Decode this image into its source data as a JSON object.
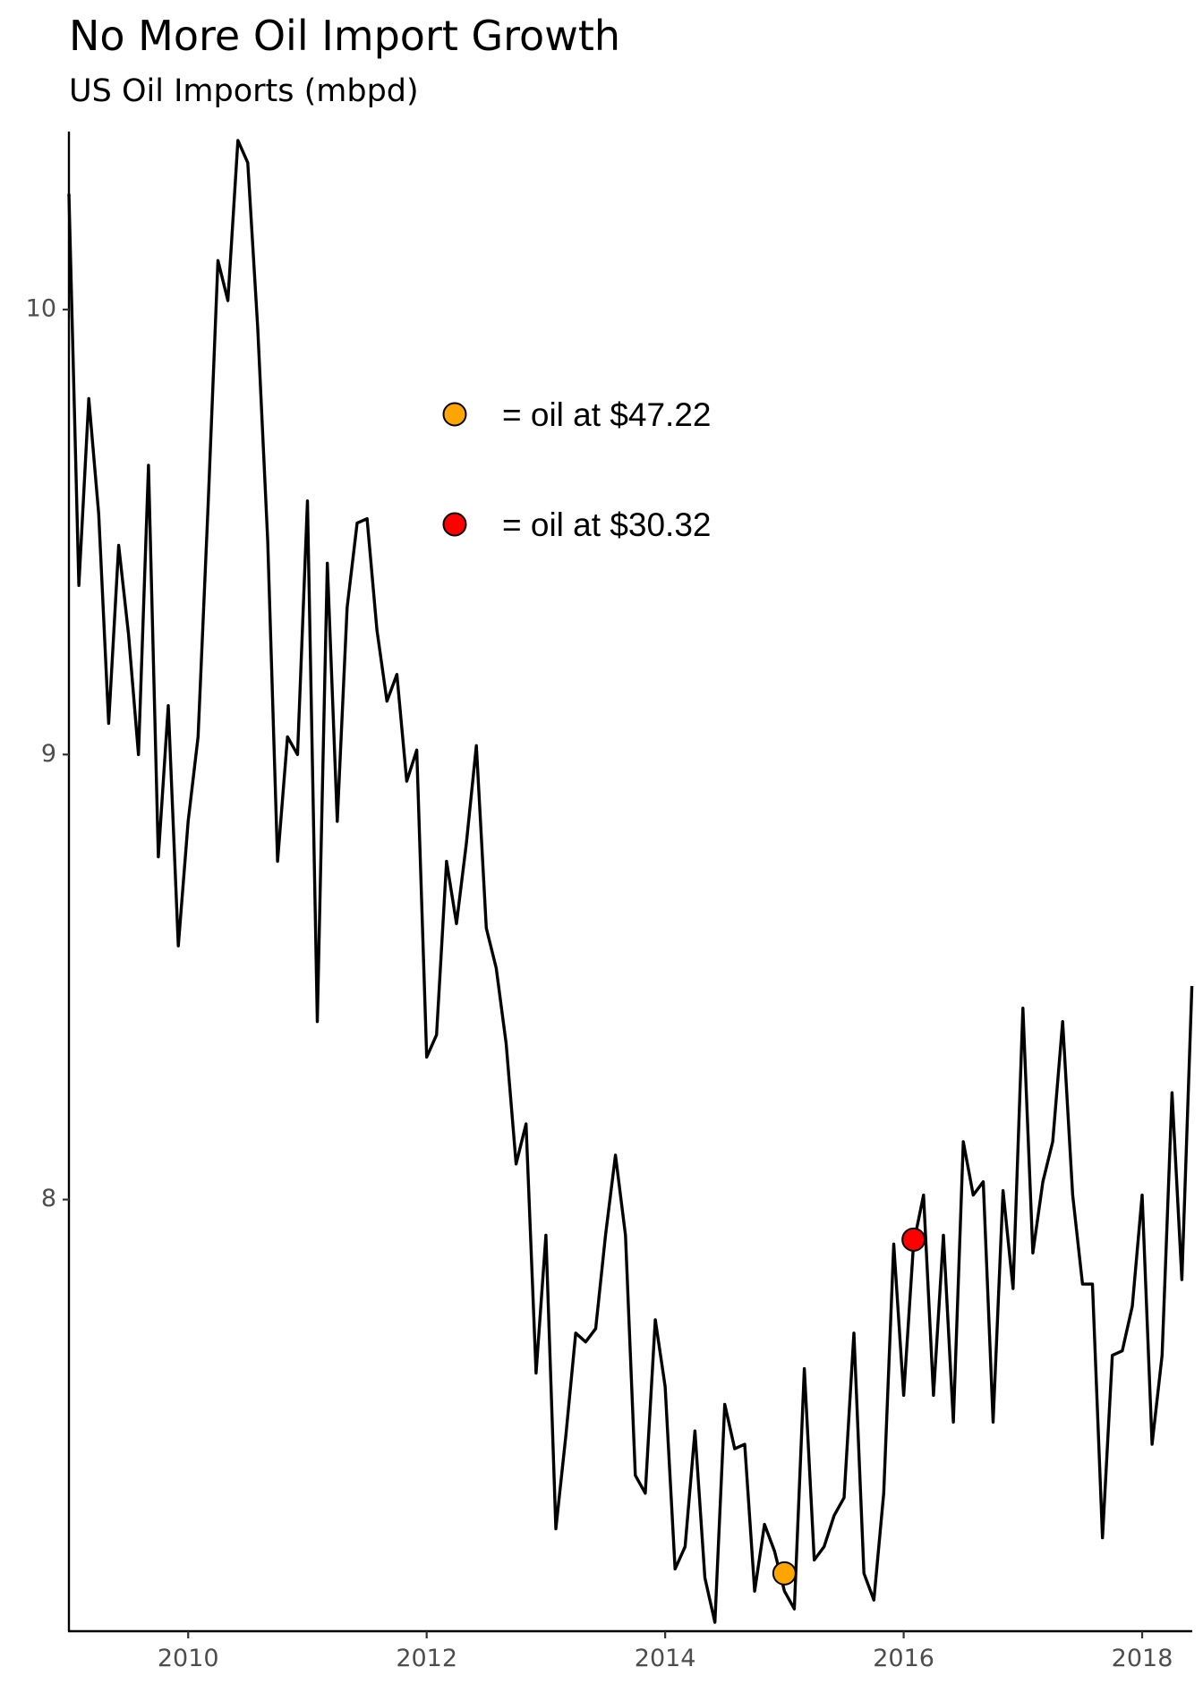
{
  "chart_data": {
    "type": "line",
    "title": "No More Oil Import Growth",
    "subtitle": "US Oil Imports (mbpd)",
    "xlabel": "",
    "ylabel": "",
    "x_ticks": [
      "2010",
      "2012",
      "2014",
      "2016",
      "2018"
    ],
    "y_ticks": [
      "8",
      "9",
      "10"
    ],
    "xlim": [
      2009.0,
      2018.42
    ],
    "ylim": [
      7.03,
      10.4
    ],
    "grid": false,
    "line_color": "#000000",
    "series": [
      {
        "x": [
          2009.0,
          2009.083,
          2009.167,
          2009.25,
          2009.333,
          2009.417,
          2009.5,
          2009.583,
          2009.667,
          2009.75,
          2009.833,
          2009.917,
          2010.0,
          2010.083,
          2010.167,
          2010.25,
          2010.333,
          2010.417,
          2010.5,
          2010.583,
          2010.667,
          2010.75,
          2010.833,
          2010.917,
          2011.0,
          2011.083,
          2011.167,
          2011.25,
          2011.333,
          2011.417,
          2011.5,
          2011.583,
          2011.667,
          2011.75,
          2011.833,
          2011.917,
          2012.0,
          2012.083,
          2012.167,
          2012.25,
          2012.333,
          2012.417,
          2012.5,
          2012.583,
          2012.667,
          2012.75,
          2012.833,
          2012.917,
          2013.0,
          2013.083,
          2013.167,
          2013.25,
          2013.333,
          2013.417,
          2013.5,
          2013.583,
          2013.667,
          2013.75,
          2013.833,
          2013.917,
          2014.0,
          2014.083,
          2014.167,
          2014.25,
          2014.333,
          2014.417,
          2014.5,
          2014.583,
          2014.667,
          2014.75,
          2014.833,
          2014.917,
          2015.0,
          2015.083,
          2015.167,
          2015.25,
          2015.333,
          2015.417,
          2015.5,
          2015.583,
          2015.667,
          2015.75,
          2015.833,
          2015.917,
          2016.0,
          2016.083,
          2016.167,
          2016.25,
          2016.333,
          2016.417,
          2016.5,
          2016.583,
          2016.667,
          2016.75,
          2016.833,
          2016.917,
          2017.0,
          2017.083,
          2017.167,
          2017.25,
          2017.333,
          2017.417,
          2017.5,
          2017.583,
          2017.667,
          2017.75,
          2017.833,
          2017.917,
          2018.0,
          2018.083,
          2018.167,
          2018.25,
          2018.333,
          2018.417
        ],
        "values": [
          10.26,
          9.38,
          9.8,
          9.54,
          9.07,
          9.47,
          9.27,
          9.0,
          9.65,
          8.77,
          9.11,
          8.57,
          8.85,
          9.04,
          9.56,
          10.11,
          10.02,
          10.38,
          10.33,
          9.96,
          9.48,
          8.76,
          9.04,
          9.0,
          9.57,
          8.4,
          9.43,
          8.85,
          9.33,
          9.52,
          9.53,
          9.28,
          9.12,
          9.18,
          8.94,
          9.01,
          8.32,
          8.37,
          8.76,
          8.62,
          8.8,
          9.02,
          8.61,
          8.52,
          8.35,
          8.08,
          8.17,
          7.61,
          7.92,
          7.26,
          7.47,
          7.7,
          7.68,
          7.71,
          7.92,
          8.1,
          7.92,
          7.38,
          7.34,
          7.73,
          7.58,
          7.17,
          7.22,
          7.48,
          7.15,
          7.05,
          7.54,
          7.44,
          7.45,
          7.12,
          7.27,
          7.21,
          7.12,
          7.08,
          7.62,
          7.19,
          7.22,
          7.29,
          7.33,
          7.7,
          7.16,
          7.1,
          7.34,
          7.9,
          7.56,
          7.9,
          8.01,
          7.56,
          7.92,
          7.5,
          8.13,
          8.01,
          8.04,
          7.5,
          8.02,
          7.8,
          8.43,
          7.88,
          8.04,
          8.13,
          8.4,
          8.01,
          7.81,
          7.81,
          7.24,
          7.65,
          7.66,
          7.76,
          8.01,
          7.45,
          7.65,
          8.24,
          7.82,
          8.48
        ]
      }
    ],
    "markers": [
      {
        "x": 2015.0,
        "value": 7.16,
        "color": "#FFA500"
      },
      {
        "x": 2016.083,
        "value": 7.91,
        "color": "#FF0000"
      }
    ],
    "legend": {
      "placement": "top-center",
      "items": [
        {
          "label": "= oil at $47.22",
          "color": "#FFA500"
        },
        {
          "label": "= oil at $30.32",
          "color": "#FF0000"
        }
      ]
    }
  }
}
